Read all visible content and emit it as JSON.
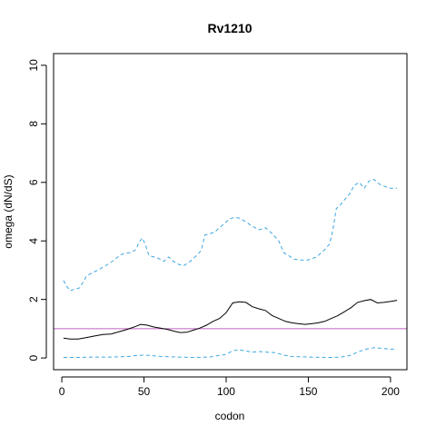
{
  "chart_data": {
    "type": "line",
    "title": "Rv1210",
    "xlabel": "codon",
    "ylabel": "omega (dN/dS)",
    "xlim": [
      -5,
      210
    ],
    "ylim": [
      -0.4,
      10.4
    ],
    "x_ticks": [
      0,
      50,
      100,
      150,
      200
    ],
    "y_ticks": [
      0,
      2,
      4,
      6,
      8,
      10
    ],
    "grid": false,
    "reference_line": {
      "y": 1,
      "color": "#c060c0"
    },
    "series": [
      {
        "style": "solid",
        "color": "#000000",
        "x": [
          1,
          5,
          10,
          15,
          20,
          25,
          30,
          35,
          40,
          45,
          48,
          52,
          56,
          60,
          64,
          68,
          72,
          76,
          80,
          84,
          88,
          92,
          96,
          100,
          104,
          108,
          112,
          116,
          120,
          124,
          128,
          132,
          136,
          140,
          144,
          148,
          152,
          156,
          160,
          164,
          168,
          172,
          176,
          180,
          184,
          188,
          192,
          196,
          200,
          204
        ],
        "y": [
          0.68,
          0.65,
          0.65,
          0.7,
          0.75,
          0.8,
          0.82,
          0.9,
          0.98,
          1.08,
          1.15,
          1.12,
          1.06,
          1.02,
          0.98,
          0.92,
          0.87,
          0.88,
          0.95,
          1.02,
          1.12,
          1.25,
          1.35,
          1.55,
          1.88,
          1.92,
          1.9,
          1.75,
          1.68,
          1.62,
          1.45,
          1.35,
          1.25,
          1.2,
          1.17,
          1.15,
          1.17,
          1.2,
          1.25,
          1.35,
          1.45,
          1.58,
          1.72,
          1.9,
          1.96,
          2.0,
          1.88,
          1.9,
          1.93,
          1.97
        ]
      },
      {
        "style": "dashed",
        "color": "#3fa7e0",
        "x": [
          1,
          3,
          5,
          8,
          11,
          13,
          15,
          18,
          22,
          25,
          28,
          32,
          35,
          38,
          42,
          45,
          47,
          49,
          51,
          53,
          56,
          59,
          62,
          65,
          68,
          71,
          74,
          77,
          80,
          83,
          85,
          87,
          90,
          93,
          96,
          99,
          102,
          105,
          108,
          112,
          116,
          120,
          124,
          128,
          132,
          135,
          138,
          141,
          145,
          150,
          155,
          160,
          163,
          165,
          167,
          169,
          172,
          175,
          178,
          181,
          184,
          187,
          190,
          193,
          197,
          200,
          204
        ],
        "y": [
          2.65,
          2.45,
          2.3,
          2.35,
          2.4,
          2.6,
          2.8,
          2.9,
          3.0,
          3.1,
          3.2,
          3.35,
          3.5,
          3.58,
          3.6,
          3.7,
          3.95,
          4.1,
          3.85,
          3.5,
          3.45,
          3.4,
          3.3,
          3.45,
          3.3,
          3.2,
          3.15,
          3.25,
          3.4,
          3.55,
          3.7,
          4.2,
          4.25,
          4.3,
          4.45,
          4.6,
          4.75,
          4.8,
          4.78,
          4.65,
          4.5,
          4.38,
          4.45,
          4.25,
          4.0,
          3.6,
          3.5,
          3.38,
          3.35,
          3.35,
          3.45,
          3.7,
          3.9,
          4.4,
          5.1,
          5.2,
          5.4,
          5.6,
          5.9,
          6.0,
          5.8,
          6.05,
          6.1,
          5.95,
          5.85,
          5.8,
          5.8
        ]
      },
      {
        "style": "dashed",
        "color": "#3fa7e0",
        "x": [
          1,
          10,
          20,
          30,
          40,
          45,
          50,
          55,
          60,
          70,
          80,
          90,
          95,
          100,
          104,
          108,
          112,
          116,
          120,
          125,
          130,
          135,
          140,
          150,
          160,
          165,
          170,
          175,
          180,
          185,
          190,
          195,
          200,
          204
        ],
        "y": [
          0.02,
          0.02,
          0.03,
          0.03,
          0.05,
          0.08,
          0.1,
          0.08,
          0.05,
          0.03,
          0.02,
          0.03,
          0.08,
          0.12,
          0.25,
          0.28,
          0.24,
          0.2,
          0.22,
          0.2,
          0.18,
          0.1,
          0.05,
          0.03,
          0.02,
          0.02,
          0.03,
          0.08,
          0.2,
          0.3,
          0.35,
          0.33,
          0.3,
          0.3
        ]
      }
    ]
  }
}
